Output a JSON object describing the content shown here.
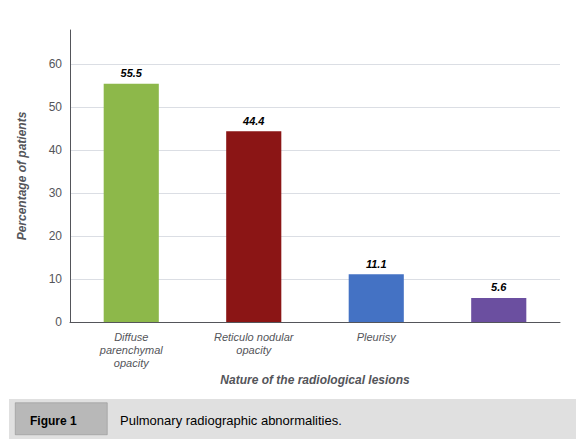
{
  "chart_data": {
    "type": "bar",
    "categories": [
      "Diffuse\nparenchymal\nopacity",
      "Reticulo nodular\nopacity",
      "Pleurisy",
      null
    ],
    "values": [
      55.5,
      44.4,
      11.1,
      5.6
    ],
    "colors": [
      "#8db84a",
      "#8b1515",
      "#4472c4",
      "#6b4fa0"
    ],
    "xlabel": "Nature of the radiological lesions",
    "ylabel": "Percentage of patients",
    "ylim": [
      0,
      68
    ],
    "yticks": [
      0,
      10,
      20,
      30,
      40,
      50,
      60
    ],
    "grid": true,
    "data_labels": true,
    "annotations": [
      "Figure 1",
      "Pulmonary radiographic abnormalities."
    ]
  }
}
